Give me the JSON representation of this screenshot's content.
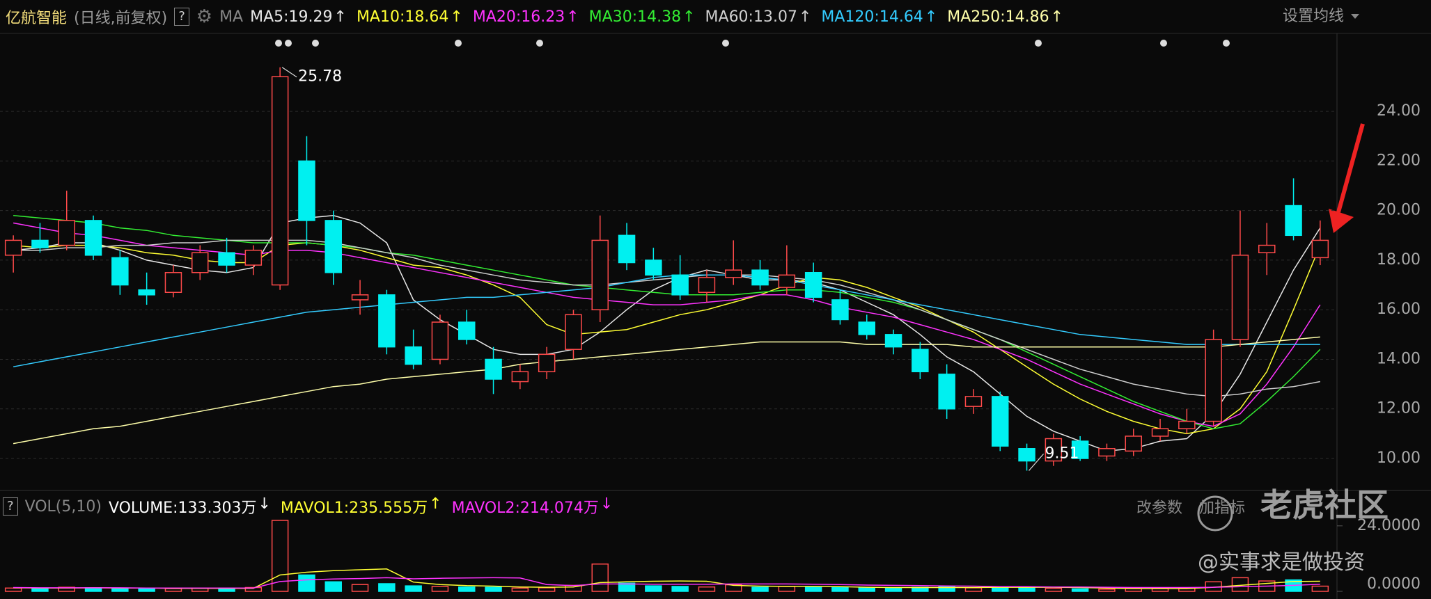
{
  "chart_data": {
    "type": "candlestick",
    "title": "亿航智能",
    "subtitle": "(日线,前复权)",
    "help": "?",
    "ma_label": "MA",
    "settings": "设置均线",
    "up_color": "#ff4a4a",
    "down_color": "#00f0f0",
    "ylim": [
      8.85,
      26.95
    ],
    "yticks": [
      {
        "value": 10,
        "label": "10.00"
      },
      {
        "value": 12,
        "label": "12.00"
      },
      {
        "value": 14,
        "label": "14.00"
      },
      {
        "value": 16,
        "label": "16.00"
      },
      {
        "value": 18,
        "label": "18.00"
      },
      {
        "value": 20,
        "label": "20.00"
      },
      {
        "value": 22,
        "label": "22.00"
      },
      {
        "value": 24,
        "label": "24.00"
      }
    ],
    "grid": true,
    "annotations": [
      {
        "text": "25.78",
        "index": 10
      },
      {
        "text": "9.51",
        "index": 38
      }
    ],
    "candles": [
      [
        18.2,
        19.0,
        17.5,
        18.8
      ],
      [
        18.8,
        19.5,
        18.3,
        18.5
      ],
      [
        18.6,
        20.8,
        18.4,
        19.6
      ],
      [
        19.6,
        19.8,
        18.0,
        18.2
      ],
      [
        18.1,
        18.4,
        16.6,
        17.0
      ],
      [
        16.8,
        17.5,
        16.2,
        16.6
      ],
      [
        16.7,
        17.8,
        16.5,
        17.5
      ],
      [
        17.5,
        18.6,
        17.2,
        18.3
      ],
      [
        18.3,
        18.9,
        17.5,
        17.8
      ],
      [
        17.8,
        18.6,
        17.4,
        18.4
      ],
      [
        17.0,
        25.78,
        16.8,
        25.4
      ],
      [
        22.0,
        23.0,
        18.6,
        19.6
      ],
      [
        19.6,
        20.0,
        17.0,
        17.5
      ],
      [
        16.4,
        17.2,
        15.8,
        16.6
      ],
      [
        16.6,
        16.8,
        14.2,
        14.5
      ],
      [
        14.5,
        15.2,
        13.6,
        13.8
      ],
      [
        14.0,
        15.8,
        13.8,
        15.5
      ],
      [
        15.5,
        16.0,
        14.6,
        14.8
      ],
      [
        14.0,
        14.5,
        12.6,
        13.2
      ],
      [
        13.1,
        13.8,
        12.8,
        13.5
      ],
      [
        13.5,
        14.5,
        13.2,
        14.2
      ],
      [
        14.4,
        16.0,
        14.0,
        15.8
      ],
      [
        16.0,
        19.8,
        15.5,
        18.8
      ],
      [
        19.0,
        19.5,
        17.6,
        17.9
      ],
      [
        18.0,
        18.5,
        17.2,
        17.4
      ],
      [
        17.4,
        18.2,
        16.4,
        16.6
      ],
      [
        16.7,
        17.6,
        16.3,
        17.3
      ],
      [
        17.3,
        18.8,
        17.0,
        17.6
      ],
      [
        17.6,
        18.0,
        16.8,
        17.0
      ],
      [
        16.9,
        18.6,
        16.6,
        17.4
      ],
      [
        17.5,
        17.9,
        16.3,
        16.5
      ],
      [
        16.4,
        16.8,
        15.4,
        15.6
      ],
      [
        15.5,
        15.8,
        14.8,
        15.0
      ],
      [
        15.0,
        15.2,
        14.2,
        14.5
      ],
      [
        14.4,
        14.7,
        13.2,
        13.5
      ],
      [
        13.4,
        13.8,
        11.6,
        12.0
      ],
      [
        12.1,
        12.8,
        11.8,
        12.5
      ],
      [
        12.5,
        12.7,
        10.3,
        10.5
      ],
      [
        10.4,
        10.6,
        9.51,
        9.9
      ],
      [
        9.9,
        11.0,
        9.7,
        10.8
      ],
      [
        10.7,
        10.9,
        9.9,
        10.0
      ],
      [
        10.1,
        10.6,
        9.9,
        10.4
      ],
      [
        10.3,
        11.2,
        10.1,
        10.9
      ],
      [
        10.9,
        11.6,
        10.7,
        11.2
      ],
      [
        11.2,
        12.0,
        11.0,
        11.5
      ],
      [
        11.5,
        15.2,
        11.3,
        14.8
      ],
      [
        14.8,
        20.0,
        14.5,
        18.2
      ],
      [
        18.3,
        19.5,
        17.4,
        18.6
      ],
      [
        20.2,
        21.3,
        18.8,
        19.0
      ],
      [
        18.1,
        19.6,
        17.8,
        18.8
      ]
    ],
    "series": [
      {
        "name": "MA5:19.29",
        "arrow": "↑",
        "color": "#e8e8e8",
        "values": [
          18.4,
          18.5,
          18.7,
          18.7,
          18.4,
          18.0,
          17.8,
          17.6,
          17.5,
          17.7,
          19.5,
          19.7,
          19.8,
          19.5,
          18.7,
          16.4,
          15.6,
          15.0,
          14.4,
          14.2,
          14.2,
          14.4,
          15.1,
          16.0,
          16.8,
          17.3,
          17.6,
          17.4,
          17.2,
          17.2,
          17.1,
          16.8,
          16.3,
          15.8,
          15.0,
          14.1,
          13.5,
          12.6,
          11.7,
          11.1,
          10.7,
          10.3,
          10.4,
          10.7,
          10.8,
          11.8,
          13.4,
          15.5,
          17.6,
          19.3
        ]
      },
      {
        "name": "MA10:18.64",
        "arrow": "↑",
        "color": "#ffff33",
        "values": [
          18.6,
          18.5,
          18.6,
          18.6,
          18.5,
          18.3,
          18.2,
          18.0,
          17.9,
          17.9,
          18.6,
          18.7,
          18.6,
          18.4,
          18.1,
          17.8,
          17.7,
          17.4,
          17.0,
          16.5,
          15.4,
          15.0,
          15.1,
          15.2,
          15.5,
          15.8,
          16.0,
          16.3,
          16.6,
          17.0,
          17.3,
          17.2,
          16.9,
          16.5,
          16.1,
          15.6,
          15.1,
          14.4,
          13.7,
          13.0,
          12.4,
          11.9,
          11.5,
          11.2,
          11.0,
          11.2,
          12.0,
          13.5,
          16.0,
          18.6
        ]
      },
      {
        "name": "MA20:16.23",
        "arrow": "↑",
        "color": "#ff33ff",
        "values": [
          19.5,
          19.3,
          19.1,
          19.0,
          18.8,
          18.6,
          18.5,
          18.4,
          18.3,
          18.2,
          18.4,
          18.4,
          18.3,
          18.1,
          17.9,
          17.7,
          17.5,
          17.3,
          17.1,
          16.9,
          16.7,
          16.5,
          16.4,
          16.3,
          16.2,
          16.2,
          16.3,
          16.4,
          16.6,
          16.6,
          16.4,
          16.1,
          15.9,
          15.7,
          15.4,
          15.1,
          14.8,
          14.4,
          14.0,
          13.5,
          13.0,
          12.6,
          12.2,
          11.8,
          11.5,
          11.3,
          11.8,
          13.0,
          14.5,
          16.2
        ]
      },
      {
        "name": "MA30:14.38",
        "arrow": "↑",
        "color": "#33ee33",
        "values": [
          19.8,
          19.7,
          19.6,
          19.5,
          19.3,
          19.2,
          19.0,
          18.9,
          18.8,
          18.7,
          18.7,
          18.7,
          18.6,
          18.5,
          18.3,
          18.2,
          18.0,
          17.8,
          17.6,
          17.4,
          17.2,
          17.0,
          16.9,
          16.8,
          16.7,
          16.6,
          16.6,
          16.6,
          16.7,
          16.8,
          16.8,
          16.7,
          16.5,
          16.3,
          16.0,
          15.6,
          15.2,
          14.8,
          14.3,
          13.8,
          13.3,
          12.8,
          12.3,
          11.9,
          11.5,
          11.2,
          11.4,
          12.3,
          13.3,
          14.4
        ]
      },
      {
        "name": "MA60:13.07",
        "arrow": "↑",
        "color": "#cfcfcf",
        "values": [
          18.4,
          18.4,
          18.5,
          18.5,
          18.6,
          18.6,
          18.7,
          18.7,
          18.8,
          18.8,
          18.8,
          18.8,
          18.7,
          18.5,
          18.3,
          18.1,
          17.8,
          17.6,
          17.4,
          17.2,
          17.1,
          17.0,
          17.0,
          17.1,
          17.2,
          17.3,
          17.4,
          17.4,
          17.4,
          17.3,
          17.2,
          17.0,
          16.7,
          16.4,
          16.0,
          15.6,
          15.2,
          14.8,
          14.4,
          14.0,
          13.6,
          13.3,
          13.0,
          12.8,
          12.6,
          12.5,
          12.6,
          12.8,
          12.9,
          13.1
        ]
      },
      {
        "name": "MA120:14.64",
        "arrow": "↑",
        "color": "#33ccff",
        "values": [
          13.7,
          13.9,
          14.1,
          14.3,
          14.5,
          14.7,
          14.9,
          15.1,
          15.3,
          15.5,
          15.7,
          15.9,
          16.0,
          16.1,
          16.2,
          16.3,
          16.4,
          16.5,
          16.5,
          16.6,
          16.7,
          16.8,
          16.9,
          17.1,
          17.3,
          17.4,
          17.4,
          17.4,
          17.3,
          17.2,
          17.0,
          16.8,
          16.6,
          16.4,
          16.2,
          16.0,
          15.8,
          15.6,
          15.4,
          15.2,
          15.0,
          14.9,
          14.8,
          14.7,
          14.6,
          14.6,
          14.6,
          14.6,
          14.6,
          14.6
        ]
      },
      {
        "name": "MA250:14.86",
        "arrow": "↑",
        "color": "#ffffaa",
        "values": [
          10.6,
          10.8,
          11.0,
          11.2,
          11.3,
          11.5,
          11.7,
          11.9,
          12.1,
          12.3,
          12.5,
          12.7,
          12.9,
          13.0,
          13.2,
          13.3,
          13.4,
          13.5,
          13.6,
          13.8,
          13.9,
          14.0,
          14.1,
          14.2,
          14.3,
          14.4,
          14.5,
          14.6,
          14.7,
          14.7,
          14.7,
          14.7,
          14.6,
          14.6,
          14.6,
          14.6,
          14.5,
          14.5,
          14.5,
          14.5,
          14.5,
          14.5,
          14.5,
          14.5,
          14.5,
          14.5,
          14.6,
          14.7,
          14.8,
          14.9
        ]
      }
    ],
    "volume_panel": {
      "help": "?",
      "label": "VOL(5,10)",
      "edit": "改参数",
      "add": "加指标",
      "ylim": [
        0,
        26
      ],
      "yticks": [
        {
          "value": 0,
          "label": "0.0000"
        },
        {
          "value": 24,
          "label": "24.0000"
        }
      ],
      "volume": {
        "name": "VOLUME:133.303万",
        "arrow": "↓",
        "color": "#ffffff",
        "values": [
          1.2,
          1.0,
          1.5,
          1.3,
          1.1,
          0.9,
          1.0,
          1.2,
          1.0,
          1.4,
          26,
          6.0,
          3.5,
          2.5,
          2.8,
          2.0,
          1.8,
          1.6,
          1.5,
          1.2,
          1.3,
          2.2,
          10,
          3.0,
          2.0,
          1.8,
          1.6,
          2.4,
          1.5,
          1.8,
          1.6,
          1.4,
          1.3,
          1.2,
          1.5,
          1.8,
          1.3,
          1.7,
          1.4,
          1.1,
          0.9,
          0.8,
          1.0,
          1.1,
          1.3,
          3.5,
          5.0,
          3.8,
          4.2,
          1.9
        ]
      },
      "series": [
        {
          "name": "MAVOL1:235.555万",
          "arrow": "↑",
          "color": "#ffff33",
          "values": [
            1.3,
            1.2,
            1.2,
            1.3,
            1.2,
            1.2,
            1.1,
            1.1,
            1.1,
            1.1,
            6.0,
            7.0,
            7.6,
            7.9,
            8.2,
            3.4,
            2.5,
            2.1,
            1.9,
            1.6,
            1.5,
            1.6,
            3.2,
            3.5,
            3.7,
            3.8,
            3.7,
            2.2,
            1.9,
            1.8,
            1.8,
            1.7,
            1.5,
            1.4,
            1.4,
            1.4,
            1.4,
            1.5,
            1.5,
            1.5,
            1.4,
            1.2,
            1.0,
            1.0,
            1.0,
            1.5,
            2.2,
            2.9,
            3.6,
            3.7
          ]
        },
        {
          "name": "MAVOL2:214.074万",
          "arrow": "↓",
          "color": "#ff33ff",
          "values": [
            1.4,
            1.3,
            1.3,
            1.3,
            1.3,
            1.2,
            1.2,
            1.2,
            1.2,
            1.2,
            3.6,
            4.2,
            4.5,
            4.7,
            5.0,
            4.6,
            4.8,
            4.9,
            5.0,
            4.9,
            2.5,
            2.1,
            2.7,
            2.7,
            2.6,
            2.6,
            2.6,
            2.7,
            2.7,
            2.7,
            2.6,
            2.5,
            2.3,
            2.2,
            2.1,
            2.0,
            1.9,
            1.7,
            1.7,
            1.6,
            1.6,
            1.5,
            1.4,
            1.4,
            1.4,
            1.5,
            1.7,
            1.9,
            2.2,
            2.6
          ]
        }
      ]
    },
    "watermark": "老虎社区",
    "author": "@实事求是做投资"
  }
}
